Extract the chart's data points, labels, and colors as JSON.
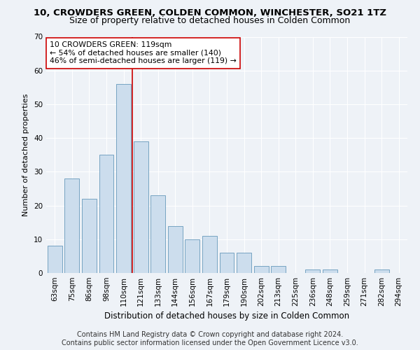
{
  "title": "10, CROWDERS GREEN, COLDEN COMMON, WINCHESTER, SO21 1TZ",
  "subtitle": "Size of property relative to detached houses in Colden Common",
  "xlabel": "Distribution of detached houses by size in Colden Common",
  "ylabel": "Number of detached properties",
  "categories": [
    "63sqm",
    "75sqm",
    "86sqm",
    "98sqm",
    "110sqm",
    "121sqm",
    "133sqm",
    "144sqm",
    "156sqm",
    "167sqm",
    "179sqm",
    "190sqm",
    "202sqm",
    "213sqm",
    "225sqm",
    "236sqm",
    "248sqm",
    "259sqm",
    "271sqm",
    "282sqm",
    "294sqm"
  ],
  "values": [
    8,
    28,
    22,
    35,
    56,
    39,
    23,
    14,
    10,
    11,
    6,
    6,
    2,
    2,
    0,
    1,
    1,
    0,
    0,
    1,
    0
  ],
  "bar_color": "#ccdded",
  "bar_edgecolor": "#6699bb",
  "vline_x": 4.5,
  "vline_color": "#cc0000",
  "annotation_text": "10 CROWDERS GREEN: 119sqm\n← 54% of detached houses are smaller (140)\n46% of semi-detached houses are larger (119) →",
  "annotation_box_edgecolor": "#cc0000",
  "annotation_box_facecolor": "white",
  "ylim": [
    0,
    70
  ],
  "yticks": [
    0,
    10,
    20,
    30,
    40,
    50,
    60,
    70
  ],
  "footer_line1": "Contains HM Land Registry data © Crown copyright and database right 2024.",
  "footer_line2": "Contains public sector information licensed under the Open Government Licence v3.0.",
  "background_color": "#eef2f7",
  "grid_color": "white",
  "title_fontsize": 9.5,
  "subtitle_fontsize": 9,
  "tick_fontsize": 7.5,
  "ylabel_fontsize": 8,
  "xlabel_fontsize": 8.5,
  "footer_fontsize": 7,
  "annot_fontsize": 7.8
}
